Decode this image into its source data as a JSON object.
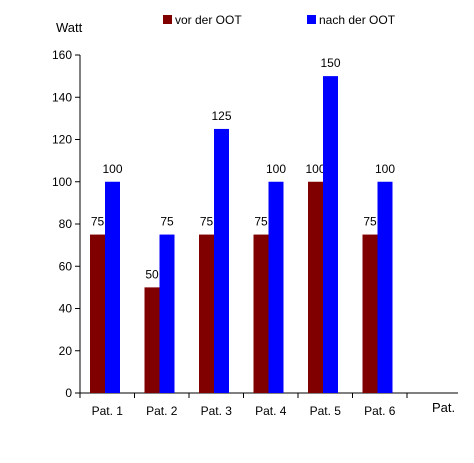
{
  "chart_data": {
    "type": "bar",
    "ylabel": "Watt",
    "xlabel": "Pat.",
    "categories": [
      "Pat. 1",
      "Pat. 2",
      "Pat. 3",
      "Pat. 4",
      "Pat. 5",
      "Pat. 6"
    ],
    "ylim": [
      0,
      160
    ],
    "yticks": [
      0,
      20,
      40,
      60,
      80,
      100,
      120,
      140,
      160
    ],
    "grid": false,
    "legend_position": "top",
    "series": [
      {
        "name": "vor der OOT",
        "color": "#800000",
        "values": [
          75,
          50,
          75,
          75,
          100,
          75
        ]
      },
      {
        "name": "nach der OOT",
        "color": "#0000ff",
        "values": [
          100,
          75,
          125,
          100,
          150,
          100
        ]
      }
    ]
  }
}
